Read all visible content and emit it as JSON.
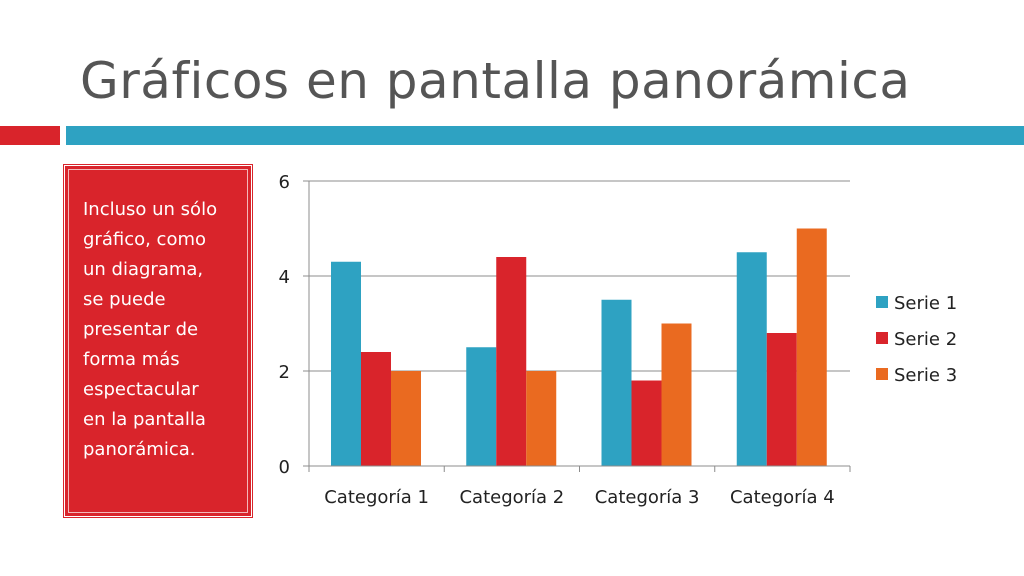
{
  "slide": {
    "title": "Gráficos en pantalla panorámica",
    "callout": "Incluso un sólo\ngráfico, como\nun diagrama,\nse puede\npresentar de\nforma más\nespectacular\nen la pantalla\npanorámica.",
    "accent_red": "#d9242b",
    "accent_blue": "#2ea2c2"
  },
  "chart_data": {
    "type": "bar",
    "categories": [
      "Categoría 1",
      "Categoría 2",
      "Categoría 3",
      "Categoría 4"
    ],
    "series": [
      {
        "name": "Serie 1",
        "values": [
          4.3,
          2.5,
          3.5,
          4.5
        ],
        "color": "#2ea2c2"
      },
      {
        "name": "Serie 2",
        "values": [
          2.4,
          4.4,
          1.8,
          2.8
        ],
        "color": "#d9242b"
      },
      {
        "name": "Serie 3",
        "values": [
          2,
          2,
          3,
          5
        ],
        "color": "#ea6a20"
      }
    ],
    "ylim": [
      0,
      6
    ],
    "yticks": [
      0,
      2,
      4,
      6
    ],
    "grid": true,
    "legend": "right"
  }
}
